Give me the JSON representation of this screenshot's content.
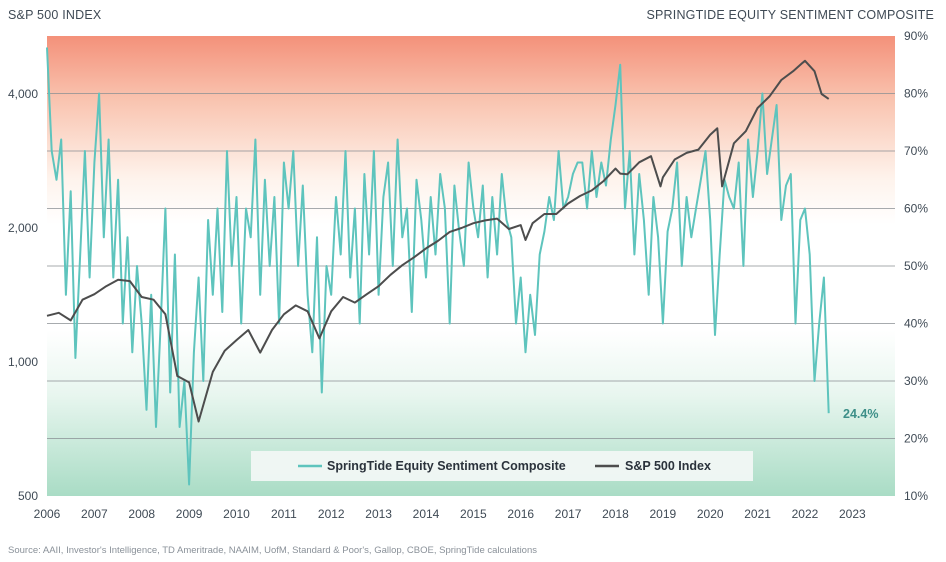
{
  "header": {
    "left_title": "S&P 500 INDEX",
    "right_title": "SPRINGTIDE EQUITY SENTIMENT COMPOSITE"
  },
  "source": "Source: AAII, Investor's Intelligence, TD Ameritrade, NAAIM, UofM, Standard & Poor's, Gallop, CBOE, SpringTide calculations",
  "chart_data": {
    "type": "line",
    "title": "",
    "xlabel": "",
    "ylabel_left": "S&P 500 INDEX",
    "ylabel_right": "SPRINGTIDE EQUITY SENTIMENT COMPOSITE",
    "x_ticks": [
      "2006",
      "2007",
      "2008",
      "2009",
      "2010",
      "2011",
      "2012",
      "2013",
      "2014",
      "2015",
      "2016",
      "2017",
      "2018",
      "2019",
      "2020",
      "2021",
      "2022",
      "2023"
    ],
    "x_range": [
      2006,
      2023.9
    ],
    "left_axis": {
      "scale": "log",
      "range": [
        500,
        5400
      ],
      "ticks": [
        500,
        1000,
        2000,
        4000
      ],
      "tick_labels": [
        "500",
        "1,000",
        "2,000",
        "4,000"
      ]
    },
    "right_axis": {
      "range": [
        10,
        90
      ],
      "ticks": [
        10,
        20,
        30,
        40,
        50,
        60,
        70,
        80,
        90
      ],
      "tick_labels": [
        "10%",
        "20%",
        "30%",
        "40%",
        "50%",
        "60%",
        "70%",
        "80%",
        "90%"
      ]
    },
    "grid": true,
    "legend_position": "bottom-center",
    "colors": {
      "sentiment": "#5ec4bd",
      "sp500": "#4d4d4d",
      "top_band": "#f4917a",
      "bottom_band": "#a9dcc5"
    },
    "annotation": {
      "text": "24.4%",
      "x": 2022.5,
      "y": 24.4,
      "axis": "right"
    },
    "series": [
      {
        "name": "SpringTide Equity Sentiment Composite",
        "axis": "right",
        "x": [
          2006.0,
          2006.1,
          2006.2,
          2006.3,
          2006.4,
          2006.5,
          2006.6,
          2006.7,
          2006.8,
          2006.9,
          2007.0,
          2007.1,
          2007.2,
          2007.3,
          2007.4,
          2007.5,
          2007.6,
          2007.7,
          2007.8,
          2007.9,
          2008.0,
          2008.1,
          2008.2,
          2008.3,
          2008.4,
          2008.5,
          2008.6,
          2008.7,
          2008.8,
          2008.9,
          2009.0,
          2009.1,
          2009.2,
          2009.3,
          2009.4,
          2009.5,
          2009.6,
          2009.7,
          2009.8,
          2009.9,
          2010.0,
          2010.1,
          2010.2,
          2010.3,
          2010.4,
          2010.5,
          2010.6,
          2010.7,
          2010.8,
          2010.9,
          2011.0,
          2011.1,
          2011.2,
          2011.3,
          2011.4,
          2011.5,
          2011.6,
          2011.7,
          2011.8,
          2011.9,
          2012.0,
          2012.1,
          2012.2,
          2012.3,
          2012.4,
          2012.5,
          2012.6,
          2012.7,
          2012.8,
          2012.9,
          2013.0,
          2013.1,
          2013.2,
          2013.3,
          2013.4,
          2013.5,
          2013.6,
          2013.7,
          2013.8,
          2013.9,
          2014.0,
          2014.1,
          2014.2,
          2014.3,
          2014.4,
          2014.5,
          2014.6,
          2014.7,
          2014.8,
          2014.9,
          2015.0,
          2015.1,
          2015.2,
          2015.3,
          2015.4,
          2015.5,
          2015.6,
          2015.7,
          2015.8,
          2015.9,
          2016.0,
          2016.1,
          2016.2,
          2016.3,
          2016.4,
          2016.5,
          2016.6,
          2016.7,
          2016.8,
          2016.9,
          2017.0,
          2017.1,
          2017.2,
          2017.3,
          2017.4,
          2017.5,
          2017.6,
          2017.7,
          2017.8,
          2017.9,
          2018.0,
          2018.1,
          2018.2,
          2018.3,
          2018.4,
          2018.5,
          2018.6,
          2018.7,
          2018.8,
          2018.9,
          2019.0,
          2019.1,
          2019.2,
          2019.3,
          2019.4,
          2019.5,
          2019.6,
          2019.7,
          2019.8,
          2019.9,
          2020.0,
          2020.1,
          2020.2,
          2020.3,
          2020.4,
          2020.5,
          2020.6,
          2020.7,
          2020.8,
          2020.9,
          2021.0,
          2021.1,
          2021.2,
          2021.3,
          2021.4,
          2021.5,
          2021.6,
          2021.7,
          2021.8,
          2021.9,
          2022.0,
          2022.1,
          2022.2,
          2022.3,
          2022.4,
          2022.5
        ],
        "values": [
          88,
          70,
          65,
          72,
          45,
          63,
          34,
          52,
          70,
          48,
          68,
          80,
          55,
          72,
          48,
          65,
          40,
          55,
          35,
          50,
          40,
          25,
          45,
          22,
          40,
          60,
          28,
          52,
          22,
          30,
          12,
          35,
          48,
          30,
          58,
          45,
          60,
          42,
          70,
          50,
          62,
          40,
          60,
          55,
          72,
          45,
          65,
          50,
          62,
          40,
          68,
          60,
          70,
          50,
          64,
          45,
          35,
          55,
          28,
          50,
          45,
          62,
          52,
          70,
          48,
          60,
          40,
          66,
          52,
          70,
          45,
          62,
          68,
          50,
          72,
          55,
          60,
          42,
          65,
          58,
          48,
          62,
          52,
          66,
          60,
          40,
          64,
          56,
          50,
          68,
          60,
          55,
          64,
          48,
          62,
          52,
          66,
          58,
          55,
          40,
          48,
          35,
          45,
          38,
          52,
          56,
          62,
          58,
          70,
          60,
          62,
          66,
          68,
          68,
          60,
          70,
          62,
          68,
          64,
          72,
          78,
          85,
          60,
          70,
          52,
          66,
          58,
          45,
          62,
          55,
          40,
          56,
          60,
          68,
          50,
          62,
          55,
          60,
          65,
          70,
          58,
          38,
          52,
          65,
          62,
          60,
          68,
          50,
          72,
          62,
          70,
          80,
          66,
          72,
          78,
          58,
          64,
          66,
          40,
          58,
          60,
          52,
          30,
          40,
          48,
          24.4
        ]
      },
      {
        "name": "S&P 500 Index",
        "axis": "left",
        "x": [
          2006.0,
          2006.25,
          2006.5,
          2006.75,
          2007.0,
          2007.25,
          2007.5,
          2007.75,
          2008.0,
          2008.25,
          2008.5,
          2008.75,
          2009.0,
          2009.2,
          2009.5,
          2009.75,
          2010.0,
          2010.25,
          2010.5,
          2010.75,
          2011.0,
          2011.25,
          2011.5,
          2011.75,
          2012.0,
          2012.25,
          2012.5,
          2012.75,
          2013.0,
          2013.25,
          2013.5,
          2013.75,
          2014.0,
          2014.25,
          2014.5,
          2014.75,
          2015.0,
          2015.25,
          2015.5,
          2015.75,
          2016.0,
          2016.1,
          2016.25,
          2016.5,
          2016.75,
          2017.0,
          2017.25,
          2017.5,
          2017.75,
          2018.0,
          2018.1,
          2018.25,
          2018.5,
          2018.75,
          2018.95,
          2019.0,
          2019.25,
          2019.5,
          2019.75,
          2020.0,
          2020.15,
          2020.25,
          2020.5,
          2020.75,
          2021.0,
          2021.25,
          2021.5,
          2021.75,
          2021.95,
          2022.0,
          2022.2,
          2022.35,
          2022.5
        ],
        "values": [
          1270,
          1290,
          1240,
          1380,
          1420,
          1480,
          1530,
          1520,
          1400,
          1380,
          1280,
          930,
          900,
          735,
          950,
          1060,
          1120,
          1180,
          1050,
          1180,
          1280,
          1340,
          1300,
          1130,
          1300,
          1400,
          1360,
          1420,
          1480,
          1570,
          1650,
          1720,
          1800,
          1870,
          1960,
          2000,
          2050,
          2080,
          2100,
          1990,
          2030,
          1880,
          2050,
          2150,
          2150,
          2270,
          2360,
          2430,
          2550,
          2720,
          2650,
          2640,
          2810,
          2900,
          2480,
          2600,
          2850,
          2950,
          3000,
          3240,
          3350,
          2480,
          3100,
          3300,
          3720,
          3950,
          4300,
          4500,
          4700,
          4750,
          4500,
          4000,
          3900
        ]
      }
    ]
  }
}
